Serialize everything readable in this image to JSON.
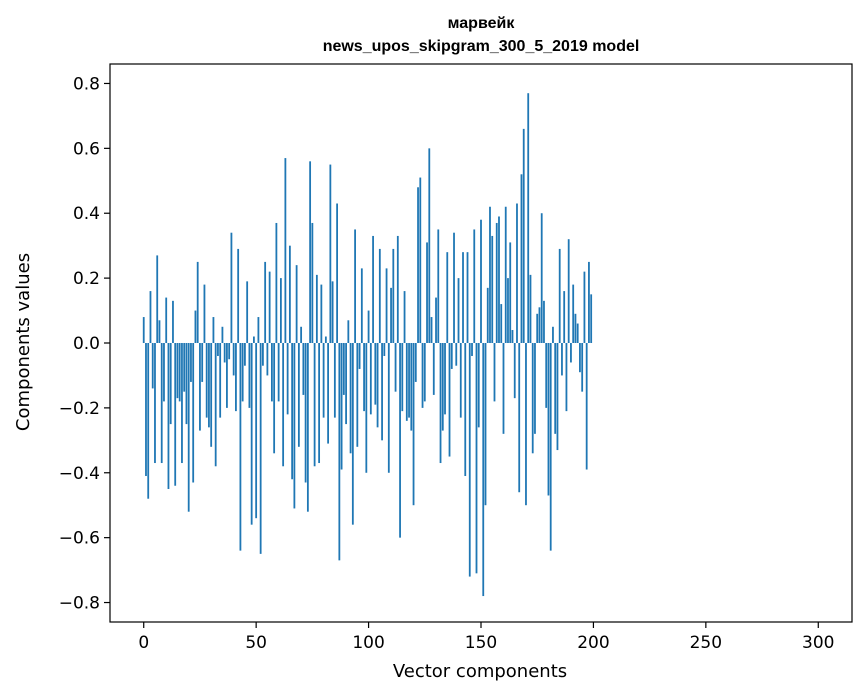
{
  "chart_data": {
    "type": "bar",
    "title_line1": "марвейк",
    "title_line2": "news_upos_skipgram_300_5_2019 model",
    "xlabel": "Vector components",
    "ylabel": "Components values",
    "xlim": [
      -15,
      315
    ],
    "ylim": [
      -0.86,
      0.86
    ],
    "x_ticks": [
      0,
      50,
      100,
      150,
      200,
      250,
      300
    ],
    "x_tick_labels": [
      "0",
      "50",
      "100",
      "150",
      "200",
      "250",
      "300"
    ],
    "y_ticks": [
      -0.8,
      -0.6,
      -0.4,
      -0.2,
      0.0,
      0.2,
      0.4,
      0.6,
      0.8
    ],
    "y_tick_labels": [
      "−0.8",
      "−0.6",
      "−0.4",
      "−0.2",
      "0.0",
      "0.2",
      "0.4",
      "0.6",
      "0.8"
    ],
    "bar_color": "#1f77b4",
    "values": [
      0.08,
      -0.41,
      -0.48,
      0.16,
      -0.14,
      -0.37,
      0.27,
      0.07,
      -0.37,
      -0.18,
      0.14,
      -0.45,
      -0.25,
      0.13,
      -0.44,
      -0.17,
      -0.18,
      -0.37,
      -0.15,
      -0.25,
      -0.52,
      -0.12,
      -0.43,
      0.1,
      0.25,
      -0.27,
      -0.12,
      0.18,
      -0.23,
      -0.26,
      -0.32,
      0.08,
      -0.38,
      -0.04,
      -0.23,
      0.05,
      -0.06,
      -0.2,
      -0.05,
      0.34,
      -0.1,
      -0.21,
      0.29,
      -0.64,
      -0.18,
      -0.07,
      0.19,
      -0.2,
      -0.56,
      0.02,
      -0.54,
      0.08,
      -0.65,
      -0.07,
      0.25,
      -0.1,
      0.22,
      -0.18,
      -0.34,
      0.37,
      -0.18,
      0.2,
      -0.38,
      0.57,
      -0.22,
      0.3,
      -0.42,
      -0.51,
      0.24,
      -0.32,
      0.05,
      -0.16,
      -0.43,
      -0.52,
      0.56,
      0.37,
      -0.38,
      0.21,
      -0.37,
      0.18,
      -0.23,
      0.02,
      -0.31,
      0.55,
      0.19,
      -0.23,
      0.43,
      -0.67,
      -0.39,
      -0.16,
      -0.25,
      0.07,
      -0.34,
      -0.56,
      0.35,
      -0.32,
      -0.08,
      0.23,
      -0.21,
      -0.4,
      0.1,
      -0.22,
      0.33,
      -0.19,
      -0.26,
      0.29,
      -0.3,
      -0.04,
      0.23,
      -0.4,
      0.17,
      0.29,
      -0.15,
      0.33,
      -0.6,
      -0.21,
      0.16,
      -0.24,
      -0.23,
      -0.27,
      -0.5,
      -0.12,
      0.48,
      0.51,
      -0.2,
      -0.18,
      0.31,
      0.6,
      0.08,
      -0.16,
      0.14,
      0.35,
      -0.37,
      -0.27,
      -0.22,
      0.28,
      -0.35,
      -0.08,
      0.34,
      -0.07,
      0.2,
      -0.23,
      0.28,
      -0.41,
      0.28,
      -0.72,
      -0.04,
      0.35,
      -0.71,
      -0.26,
      0.38,
      -0.78,
      -0.5,
      0.17,
      0.42,
      0.33,
      -0.18,
      0.37,
      0.39,
      0.12,
      -0.28,
      0.42,
      0.2,
      0.31,
      0.04,
      -0.17,
      0.43,
      -0.46,
      0.52,
      0.66,
      -0.5,
      0.77,
      0.21,
      -0.34,
      -0.28,
      0.09,
      0.11,
      0.4,
      0.13,
      -0.2,
      -0.47,
      -0.64,
      0.05,
      -0.28,
      -0.33,
      0.29,
      -0.1,
      0.16,
      -0.21,
      0.32,
      -0.06,
      0.18,
      0.09,
      0.06,
      -0.09,
      -0.15,
      0.22,
      -0.39,
      0.25,
      0.15
    ]
  }
}
